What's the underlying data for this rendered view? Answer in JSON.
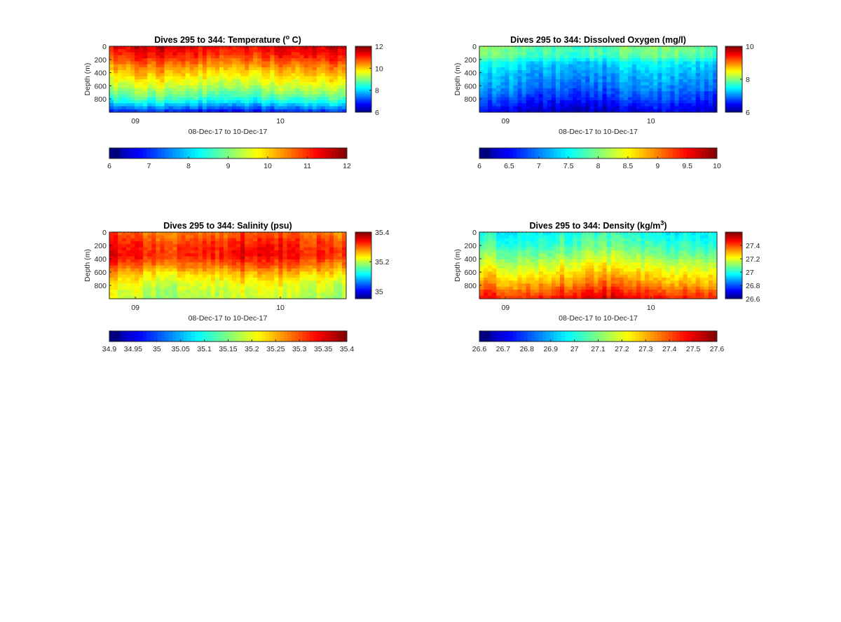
{
  "chart_data": [
    {
      "type": "heatmap",
      "title": "Dives 295 to 344: Temperature (",
      "title_sup": "o",
      "title_end": " C)",
      "xlabel": "08-Dec-17 to 10-Dec-17",
      "ylabel": "Depth (m)",
      "xticks": [
        "09",
        "10"
      ],
      "yticks": [
        0,
        200,
        400,
        600,
        800
      ],
      "ylim": [
        0,
        1000
      ],
      "clim": [
        6,
        12
      ],
      "colorbar_ticks": [
        6,
        8,
        10,
        12
      ],
      "hbar_ticks": [
        6,
        7,
        8,
        9,
        10,
        11,
        12
      ],
      "profile": [
        [
          0,
          11.4
        ],
        [
          150,
          11.0
        ],
        [
          300,
          10.4
        ],
        [
          450,
          9.9
        ],
        [
          600,
          9.4
        ],
        [
          750,
          8.8
        ],
        [
          850,
          8.2
        ],
        [
          950,
          7.3
        ],
        [
          1000,
          6.8
        ]
      ]
    },
    {
      "type": "heatmap",
      "title": "Dives 295 to 344: Dissolved Oxygen (mg/l)",
      "xlabel": "08-Dec-17 to 10-Dec-17",
      "ylabel": "Depth (m)",
      "xticks": [
        "09",
        "10"
      ],
      "yticks": [
        0,
        200,
        400,
        600,
        800
      ],
      "ylim": [
        0,
        1000
      ],
      "clim": [
        6,
        10
      ],
      "colorbar_ticks": [
        6,
        8,
        10
      ],
      "hbar_ticks": [
        6,
        6.5,
        7,
        7.5,
        8,
        8.5,
        9,
        9.5,
        10
      ],
      "profile": [
        [
          0,
          7.9
        ],
        [
          150,
          7.8
        ],
        [
          250,
          7.4
        ],
        [
          400,
          7.2
        ],
        [
          600,
          7.0
        ],
        [
          800,
          6.7
        ],
        [
          950,
          6.4
        ],
        [
          1000,
          6.3
        ]
      ]
    },
    {
      "type": "heatmap",
      "title": "Dives 295 to 344: Salinity (psu)",
      "xlabel": "08-Dec-17 to 10-Dec-17",
      "ylabel": "Depth (m)",
      "xticks": [
        "09",
        "10"
      ],
      "yticks": [
        0,
        200,
        400,
        600,
        800
      ],
      "ylim": [
        0,
        1000
      ],
      "clim": [
        34.95,
        35.4
      ],
      "colorbar_ticks": [
        35,
        35.2,
        35.4
      ],
      "hbar_ticks": [
        34.9,
        34.95,
        35,
        35.05,
        35.1,
        35.15,
        35.2,
        35.25,
        35.3,
        35.35,
        35.4
      ],
      "profile": [
        [
          0,
          35.3
        ],
        [
          200,
          35.33
        ],
        [
          350,
          35.34
        ],
        [
          500,
          35.3
        ],
        [
          650,
          35.25
        ],
        [
          800,
          35.22
        ],
        [
          1000,
          35.2
        ]
      ]
    },
    {
      "type": "heatmap",
      "title": "Dives 295 to 344: Density (kg/m",
      "title_sup": "3",
      "title_end": ")",
      "xlabel": "08-Dec-17 to 10-Dec-17",
      "ylabel": "Depth (m)",
      "xticks": [
        "09",
        "10"
      ],
      "yticks": [
        0,
        200,
        400,
        600,
        800
      ],
      "ylim": [
        0,
        1000
      ],
      "clim": [
        26.6,
        27.6
      ],
      "colorbar_ticks": [
        26.6,
        26.8,
        27,
        27.2,
        27.4
      ],
      "hbar_ticks": [
        26.6,
        26.7,
        26.8,
        26.9,
        27,
        27.1,
        27.2,
        27.3,
        27.4,
        27.5,
        27.6
      ],
      "profile": [
        [
          0,
          27.0
        ],
        [
          200,
          27.05
        ],
        [
          400,
          27.15
        ],
        [
          600,
          27.25
        ],
        [
          800,
          27.35
        ],
        [
          900,
          27.42
        ],
        [
          1000,
          27.48
        ]
      ]
    }
  ]
}
